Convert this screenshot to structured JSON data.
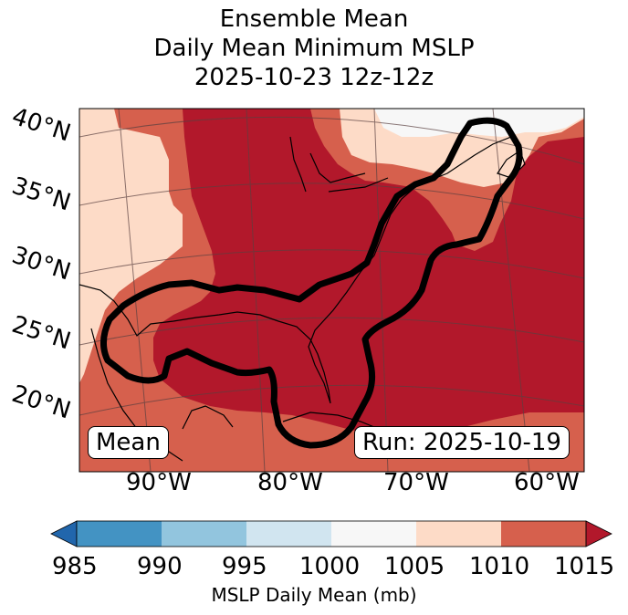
{
  "title": {
    "line1": "Ensemble Mean",
    "line2": "Daily Mean Minimum MSLP",
    "line3": "2025-10-23 12z-12z"
  },
  "map": {
    "lat_labels": [
      "40°N",
      "35°N",
      "30°N",
      "25°N",
      "20°N"
    ],
    "lon_labels": [
      "90°W",
      "80°W",
      "70°W",
      "60°W"
    ],
    "mean_box": "Mean",
    "run_box": "Run: 2025-10-19",
    "fill_colors": {
      "lt_1005_gt_1000": "#f7f7f7",
      "1005_1010": "#fddbc7",
      "1010_1015": "#d6604d",
      "gt_1015": "#b2182b"
    },
    "contour_color": "#000000"
  },
  "colorbar": {
    "label": "MSLP Daily Mean (mb)",
    "ticks": [
      "985",
      "990",
      "995",
      "1000",
      "1005",
      "1010",
      "1015"
    ],
    "colors": [
      "#2166ac",
      "#4393c3",
      "#92c5de",
      "#d1e5f0",
      "#f7f7f7",
      "#fddbc7",
      "#d6604d",
      "#b2182b"
    ]
  }
}
